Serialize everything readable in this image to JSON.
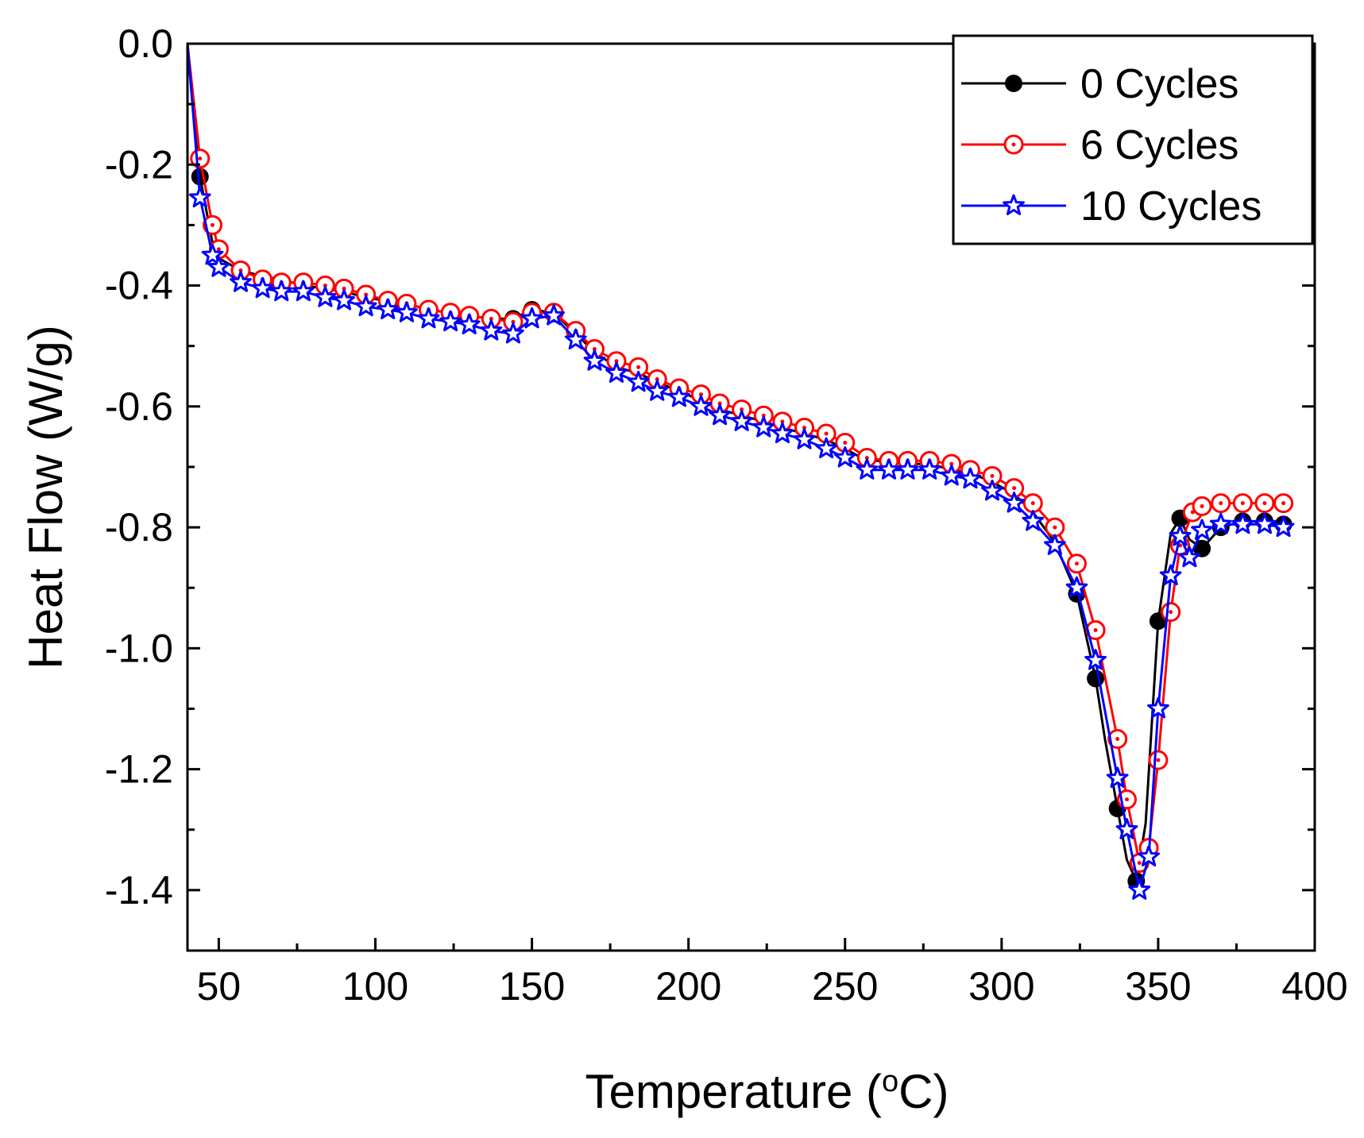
{
  "chart_data": {
    "type": "line",
    "xlabel": "Temperature (",
    "xlabel_sup": "o",
    "xlabel_suffix": "C)",
    "ylabel": "Heat Flow (W/g)",
    "xlim": [
      40,
      400
    ],
    "ylim": [
      -1.5,
      0.0
    ],
    "xticks": [
      50,
      100,
      150,
      200,
      250,
      300,
      350,
      400
    ],
    "xtick_labels": [
      "50",
      "100",
      "150",
      "200",
      "250",
      "300",
      "350",
      "400"
    ],
    "yticks": [
      0.0,
      -0.2,
      -0.4,
      -0.6,
      -0.8,
      -1.0,
      -1.2,
      -1.4
    ],
    "ytick_labels": [
      "0.0",
      "-0.2",
      "-0.4",
      "-0.6",
      "-0.8",
      "-1.0",
      "-1.2",
      "-1.4"
    ],
    "grid": false,
    "legend_position": "top-right",
    "series": [
      {
        "name": "0 Cycles",
        "color": "#000000",
        "marker": "filled-circle",
        "points": [
          [
            40,
            0.0
          ],
          [
            44,
            -0.22
          ],
          [
            48,
            -0.33
          ],
          [
            50,
            -0.355
          ],
          [
            57,
            -0.375
          ],
          [
            64,
            -0.385
          ],
          [
            70,
            -0.39
          ],
          [
            77,
            -0.4
          ],
          [
            84,
            -0.405
          ],
          [
            90,
            -0.41
          ],
          [
            97,
            -0.42
          ],
          [
            104,
            -0.425
          ],
          [
            110,
            -0.43
          ],
          [
            117,
            -0.44
          ],
          [
            124,
            -0.445
          ],
          [
            130,
            -0.45
          ],
          [
            137,
            -0.455
          ],
          [
            144,
            -0.455
          ],
          [
            150,
            -0.44
          ],
          [
            157,
            -0.445
          ],
          [
            164,
            -0.48
          ],
          [
            170,
            -0.51
          ],
          [
            177,
            -0.535
          ],
          [
            184,
            -0.545
          ],
          [
            190,
            -0.56
          ],
          [
            197,
            -0.575
          ],
          [
            204,
            -0.59
          ],
          [
            210,
            -0.605
          ],
          [
            217,
            -0.615
          ],
          [
            224,
            -0.625
          ],
          [
            230,
            -0.635
          ],
          [
            237,
            -0.645
          ],
          [
            244,
            -0.655
          ],
          [
            250,
            -0.67
          ],
          [
            257,
            -0.69
          ],
          [
            264,
            -0.69
          ],
          [
            270,
            -0.695
          ],
          [
            277,
            -0.695
          ],
          [
            284,
            -0.705
          ],
          [
            290,
            -0.71
          ],
          [
            297,
            -0.725
          ],
          [
            304,
            -0.745
          ],
          [
            310,
            -0.775
          ],
          [
            317,
            -0.825
          ],
          [
            324,
            -0.91
          ],
          [
            330,
            -1.05
          ],
          [
            333,
            -1.15
          ],
          [
            337,
            -1.265
          ],
          [
            340,
            -1.35
          ],
          [
            343,
            -1.385
          ],
          [
            346,
            -1.29
          ],
          [
            350,
            -0.955
          ],
          [
            354,
            -0.81
          ],
          [
            357,
            -0.785
          ],
          [
            360,
            -0.82
          ],
          [
            364,
            -0.835
          ],
          [
            370,
            -0.8
          ],
          [
            377,
            -0.79
          ],
          [
            384,
            -0.79
          ],
          [
            390,
            -0.795
          ]
        ],
        "markers": [
          [
            44,
            -0.22
          ],
          [
            150,
            -0.44
          ],
          [
            157,
            -0.445
          ],
          [
            144,
            -0.455
          ],
          [
            324,
            -0.91
          ],
          [
            330,
            -1.05
          ],
          [
            337,
            -1.265
          ],
          [
            343,
            -1.385
          ],
          [
            350,
            -0.955
          ],
          [
            357,
            -0.785
          ],
          [
            364,
            -0.835
          ],
          [
            370,
            -0.8
          ],
          [
            377,
            -0.79
          ],
          [
            384,
            -0.79
          ],
          [
            390,
            -0.795
          ]
        ]
      },
      {
        "name": "6 Cycles",
        "color": "#ff0000",
        "marker": "dotted-circle",
        "points": [
          [
            40,
            0.0
          ],
          [
            44,
            -0.19
          ],
          [
            48,
            -0.3
          ],
          [
            50,
            -0.34
          ],
          [
            57,
            -0.375
          ],
          [
            64,
            -0.39
          ],
          [
            70,
            -0.395
          ],
          [
            77,
            -0.395
          ],
          [
            84,
            -0.4
          ],
          [
            90,
            -0.405
          ],
          [
            97,
            -0.415
          ],
          [
            104,
            -0.425
          ],
          [
            110,
            -0.43
          ],
          [
            117,
            -0.44
          ],
          [
            124,
            -0.445
          ],
          [
            130,
            -0.45
          ],
          [
            137,
            -0.455
          ],
          [
            144,
            -0.46
          ],
          [
            150,
            -0.445
          ],
          [
            157,
            -0.445
          ],
          [
            164,
            -0.475
          ],
          [
            170,
            -0.505
          ],
          [
            177,
            -0.525
          ],
          [
            184,
            -0.535
          ],
          [
            190,
            -0.555
          ],
          [
            197,
            -0.57
          ],
          [
            204,
            -0.58
          ],
          [
            210,
            -0.595
          ],
          [
            217,
            -0.605
          ],
          [
            224,
            -0.615
          ],
          [
            230,
            -0.625
          ],
          [
            237,
            -0.635
          ],
          [
            244,
            -0.645
          ],
          [
            250,
            -0.66
          ],
          [
            257,
            -0.685
          ],
          [
            264,
            -0.69
          ],
          [
            270,
            -0.69
          ],
          [
            277,
            -0.69
          ],
          [
            284,
            -0.695
          ],
          [
            290,
            -0.705
          ],
          [
            297,
            -0.715
          ],
          [
            304,
            -0.735
          ],
          [
            310,
            -0.76
          ],
          [
            317,
            -0.8
          ],
          [
            324,
            -0.86
          ],
          [
            330,
            -0.97
          ],
          [
            337,
            -1.15
          ],
          [
            340,
            -1.25
          ],
          [
            344,
            -1.355
          ],
          [
            347,
            -1.33
          ],
          [
            350,
            -1.185
          ],
          [
            354,
            -0.94
          ],
          [
            357,
            -0.83
          ],
          [
            361,
            -0.775
          ],
          [
            364,
            -0.765
          ],
          [
            370,
            -0.76
          ],
          [
            377,
            -0.76
          ],
          [
            384,
            -0.76
          ],
          [
            390,
            -0.76
          ]
        ]
      },
      {
        "name": "10 Cycles",
        "color": "#0000ff",
        "marker": "star",
        "points": [
          [
            40,
            0.0
          ],
          [
            44,
            -0.255
          ],
          [
            48,
            -0.35
          ],
          [
            50,
            -0.37
          ],
          [
            57,
            -0.395
          ],
          [
            64,
            -0.405
          ],
          [
            70,
            -0.41
          ],
          [
            77,
            -0.41
          ],
          [
            84,
            -0.42
          ],
          [
            90,
            -0.425
          ],
          [
            97,
            -0.435
          ],
          [
            104,
            -0.44
          ],
          [
            110,
            -0.445
          ],
          [
            117,
            -0.455
          ],
          [
            124,
            -0.46
          ],
          [
            130,
            -0.465
          ],
          [
            137,
            -0.475
          ],
          [
            144,
            -0.48
          ],
          [
            150,
            -0.455
          ],
          [
            157,
            -0.45
          ],
          [
            164,
            -0.49
          ],
          [
            170,
            -0.525
          ],
          [
            177,
            -0.545
          ],
          [
            184,
            -0.56
          ],
          [
            190,
            -0.575
          ],
          [
            197,
            -0.585
          ],
          [
            204,
            -0.6
          ],
          [
            210,
            -0.615
          ],
          [
            217,
            -0.625
          ],
          [
            224,
            -0.635
          ],
          [
            230,
            -0.645
          ],
          [
            237,
            -0.655
          ],
          [
            244,
            -0.67
          ],
          [
            250,
            -0.685
          ],
          [
            257,
            -0.705
          ],
          [
            264,
            -0.705
          ],
          [
            270,
            -0.705
          ],
          [
            277,
            -0.705
          ],
          [
            284,
            -0.715
          ],
          [
            290,
            -0.72
          ],
          [
            297,
            -0.74
          ],
          [
            304,
            -0.76
          ],
          [
            310,
            -0.79
          ],
          [
            317,
            -0.83
          ],
          [
            324,
            -0.9
          ],
          [
            330,
            -1.02
          ],
          [
            337,
            -1.215
          ],
          [
            340,
            -1.3
          ],
          [
            344,
            -1.4
          ],
          [
            347,
            -1.345
          ],
          [
            350,
            -1.1
          ],
          [
            354,
            -0.88
          ],
          [
            357,
            -0.815
          ],
          [
            360,
            -0.85
          ],
          [
            364,
            -0.805
          ],
          [
            370,
            -0.795
          ],
          [
            377,
            -0.795
          ],
          [
            384,
            -0.795
          ],
          [
            390,
            -0.8
          ]
        ]
      }
    ]
  }
}
